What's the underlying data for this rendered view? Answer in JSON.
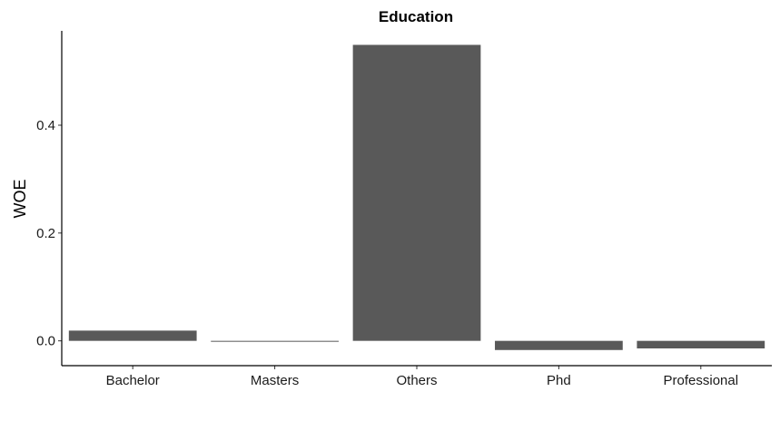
{
  "chart_data": {
    "type": "bar",
    "title": "Education",
    "xlabel": "",
    "ylabel": "WOE",
    "categories": [
      "Bachelor",
      "Masters",
      "Others",
      "Phd",
      "Professional"
    ],
    "values": [
      0.019,
      -0.001,
      0.549,
      -0.017,
      -0.014
    ],
    "ylim": [
      -0.046,
      0.575
    ],
    "yticks": [
      0.0,
      0.2,
      0.4
    ],
    "ytick_labels": [
      "0.0",
      "0.2",
      "0.4"
    ],
    "grid": false,
    "bar_color": "#595959"
  }
}
